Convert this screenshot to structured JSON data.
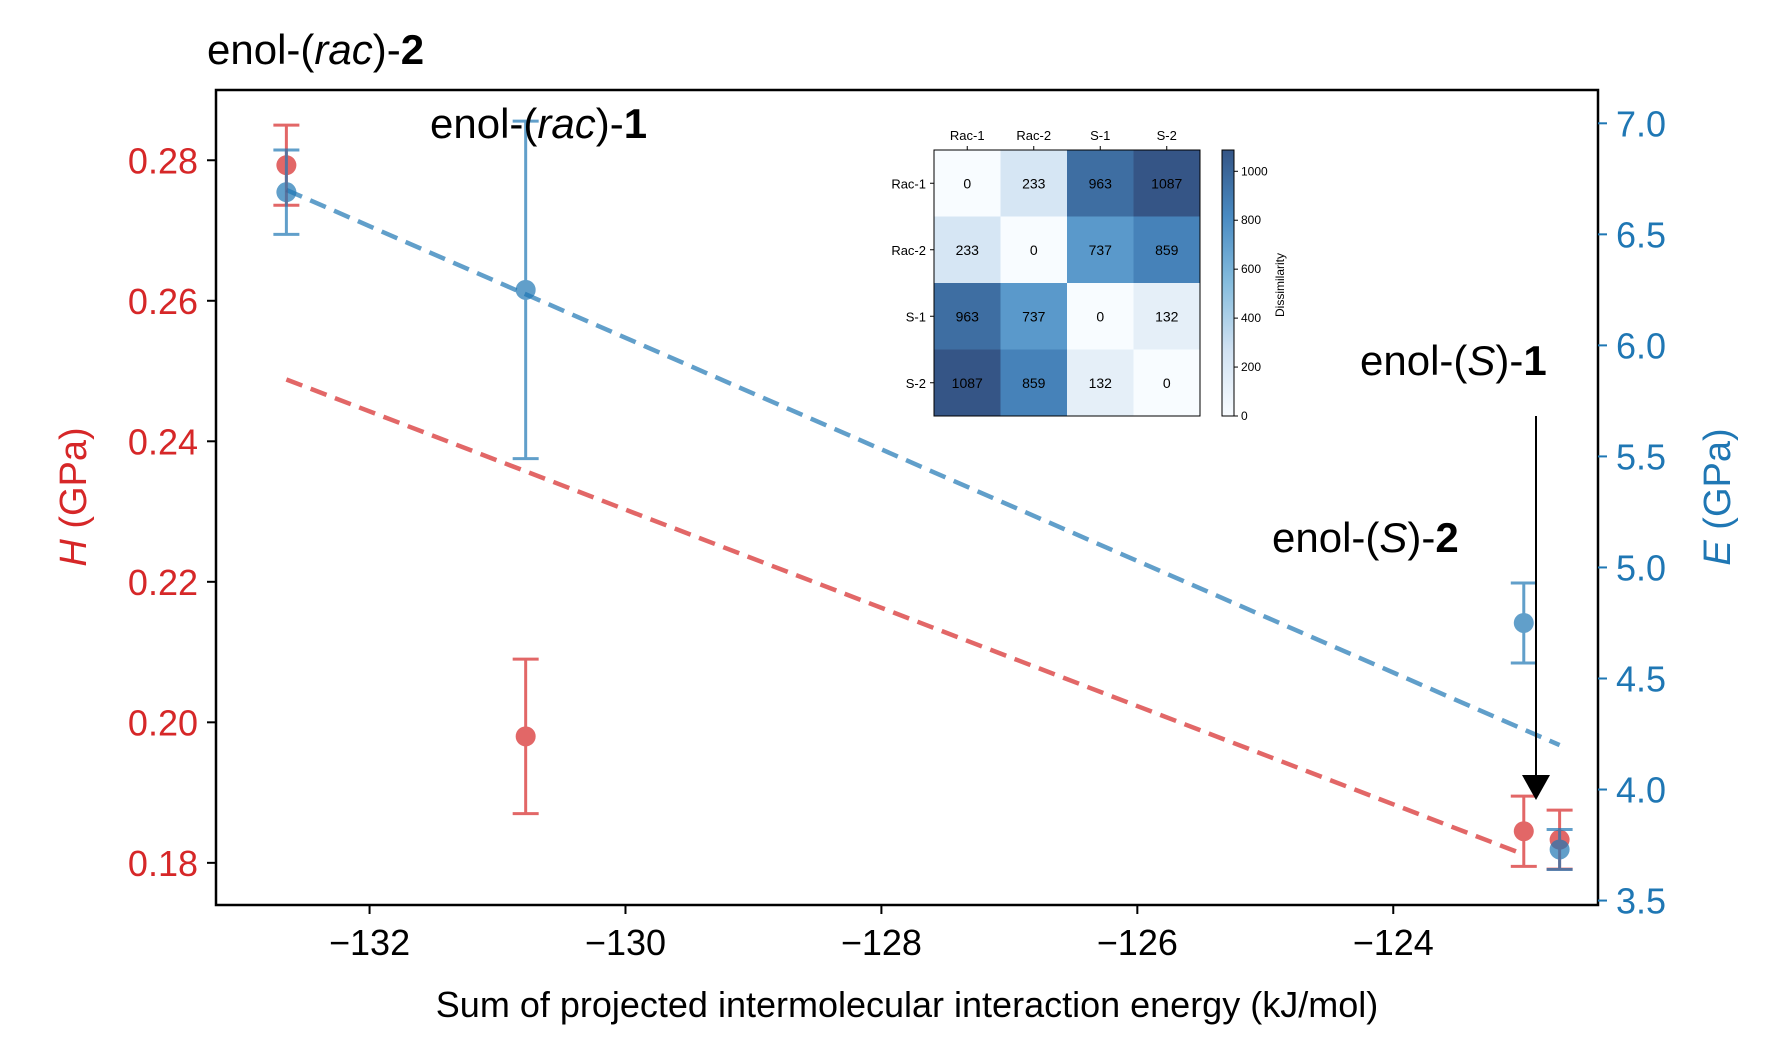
{
  "chart_data": [
    {
      "type": "scatter",
      "xlabel": "Sum of projected intermolecular interaction energy (kJ/mol)",
      "ylabel_left": {
        "symbol": "H",
        "unit": " (GPa)"
      },
      "ylabel_right": {
        "symbol": "E",
        "unit": " (GPa)"
      },
      "xlim": [
        -133.2,
        -122.4
      ],
      "ylim_left": [
        0.174,
        0.29
      ],
      "ylim_right": [
        3.48,
        7.15
      ],
      "x_ticks": [
        -132,
        -130,
        -128,
        -126,
        -124
      ],
      "x_tick_labels": [
        "−132",
        "−130",
        "−128",
        "−126",
        "−124"
      ],
      "y_left_ticks": [
        0.18,
        0.2,
        0.22,
        0.24,
        0.26,
        0.28
      ],
      "y_left_tick_labels": [
        "0.18",
        "0.20",
        "0.22",
        "0.24",
        "0.26",
        "0.28"
      ],
      "y_right_ticks": [
        3.5,
        4.0,
        4.5,
        5.0,
        5.5,
        6.0,
        6.5,
        7.0
      ],
      "y_right_tick_labels": [
        "3.5",
        "4.0",
        "4.5",
        "5.0",
        "5.5",
        "6.0",
        "6.5",
        "7.0"
      ],
      "colors": {
        "H": "#d62728",
        "E": "#1f77b4"
      },
      "series": [
        {
          "axis": "left",
          "points": [
            {
              "x": -132.65,
              "y": 0.2793,
              "err": 0.0057
            },
            {
              "x": -130.78,
              "y": 0.198,
              "err": 0.011
            },
            {
              "x": -122.98,
              "y": 0.1845,
              "err": 0.005
            },
            {
              "x": -122.7,
              "y": 0.1833,
              "err": 0.0042
            }
          ],
          "fit": {
            "x": [
              -132.65,
              -122.98
            ],
            "y": [
              0.2488,
              0.1812
            ]
          }
        },
        {
          "axis": "right",
          "points": [
            {
              "x": -132.65,
              "y": 6.69,
              "err": 0.19
            },
            {
              "x": -130.78,
              "y": 6.25,
              "err": 0.76
            },
            {
              "x": -122.98,
              "y": 4.75,
              "err": 0.18
            },
            {
              "x": -122.7,
              "y": 3.73,
              "err": 0.09
            }
          ],
          "fit": {
            "x": [
              -132.65,
              -122.7
            ],
            "y": [
              6.7,
              4.2
            ]
          }
        }
      ],
      "annotations": [
        {
          "prefix": "enol-(",
          "italic": "rac",
          "mid": ")-",
          "bold": "2"
        },
        {
          "prefix": "enol-(",
          "italic": "rac",
          "mid": ")-",
          "bold": "1"
        },
        {
          "prefix": "enol-(",
          "italic": "S",
          "mid": ")-",
          "bold": "1"
        },
        {
          "prefix": "enol-(",
          "italic": "S",
          "mid": ")-",
          "bold": "2"
        }
      ]
    },
    {
      "type": "heatmap",
      "labels": [
        "Rac-1",
        "Rac-2",
        "S-1",
        "S-2"
      ],
      "values": [
        [
          0,
          233,
          963,
          1087
        ],
        [
          233,
          0,
          737,
          859
        ],
        [
          963,
          737,
          0,
          132
        ],
        [
          1087,
          859,
          132,
          0
        ]
      ],
      "colorbar_label": "Dissimilarity",
      "colorbar_ticks": [
        0,
        200,
        400,
        600,
        800,
        1000
      ],
      "colorbar_tick_labels": [
        "0",
        "200",
        "400",
        "600",
        "800",
        "1000"
      ],
      "vmin": 0,
      "vmax": 1087
    }
  ]
}
